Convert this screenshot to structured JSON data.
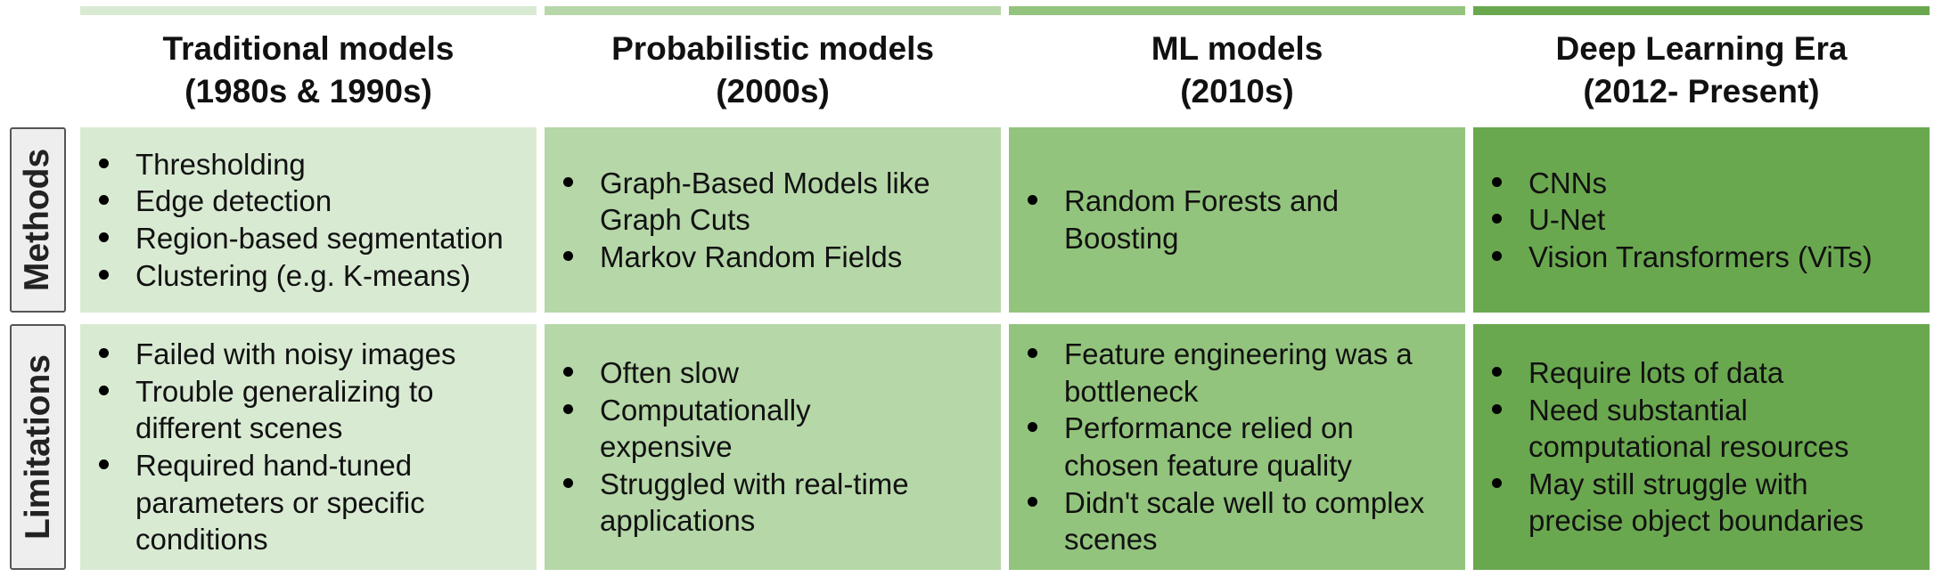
{
  "colors": {
    "era1": "#d9ead3",
    "era2": "#b6d7a8",
    "era3": "#93c47d",
    "era4": "#6aa84f",
    "label_bg": "#eeeeee",
    "label_border": "#555555"
  },
  "row_labels": {
    "methods": "Methods",
    "limitations": "Limitations"
  },
  "eras": [
    {
      "title": "Traditional models",
      "period": "(1980s & 1990s)",
      "methods": [
        "Thresholding",
        "Edge detection",
        "Region-based segmentation",
        "Clustering (e.g. K-means)"
      ],
      "limitations": [
        "Failed with noisy images",
        "Trouble generalizing to different scenes",
        "Required hand-tuned parameters or specific conditions"
      ]
    },
    {
      "title": "Probabilistic models",
      "period": "(2000s)",
      "methods": [
        "Graph-Based Models like Graph Cuts",
        "Markov Random Fields"
      ],
      "limitations": [
        "Often slow",
        "Computationally expensive",
        "Struggled with real-time applications"
      ]
    },
    {
      "title": "ML models",
      "period": "(2010s)",
      "methods": [
        "Random Forests and Boosting"
      ],
      "limitations": [
        "Feature engineering was a bottleneck",
        "Performance relied on chosen feature quality",
        "Didn't scale well to complex scenes"
      ]
    },
    {
      "title": "Deep Learning Era",
      "period": "(2012- Present)",
      "methods": [
        "CNNs",
        "U-Net",
        "Vision Transformers (ViTs)"
      ],
      "limitations": [
        "Require lots of data",
        "Need substantial computational resources",
        "May still struggle with precise object boundaries"
      ]
    }
  ]
}
